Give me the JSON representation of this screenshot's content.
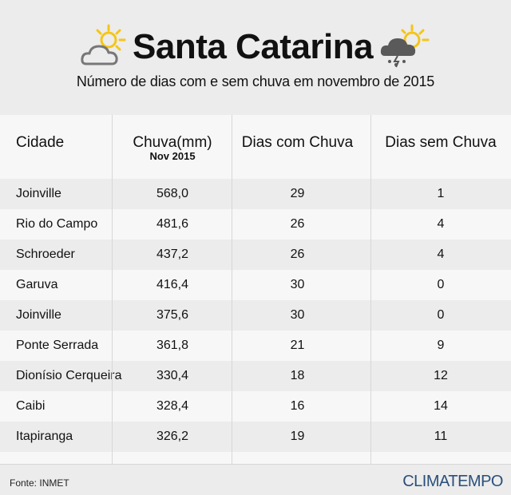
{
  "header": {
    "title": "Santa Catarina",
    "subtitle": "Número de dias com e sem chuva em novembro de 2015",
    "icons": [
      "partly-cloudy-icon",
      "storm-cloud-icon"
    ]
  },
  "chart_data": {
    "type": "table",
    "columns": [
      {
        "label": "Cidade",
        "sub": ""
      },
      {
        "label": "Chuva(mm)",
        "sub": "Nov 2015"
      },
      {
        "label": "Dias com Chuva",
        "sub": ""
      },
      {
        "label": "Dias sem Chuva",
        "sub": ""
      }
    ],
    "rows": [
      {
        "city": "Joinville",
        "rain_mm": "568,0",
        "rain_days": "29",
        "dry_days": "1"
      },
      {
        "city": "Rio do Campo",
        "rain_mm": "481,6",
        "rain_days": "26",
        "dry_days": "4"
      },
      {
        "city": "Schroeder",
        "rain_mm": "437,2",
        "rain_days": "26",
        "dry_days": "4"
      },
      {
        "city": "Garuva",
        "rain_mm": "416,4",
        "rain_days": "30",
        "dry_days": "0"
      },
      {
        "city": "Joinville",
        "rain_mm": "375,6",
        "rain_days": "30",
        "dry_days": "0"
      },
      {
        "city": "Ponte Serrada",
        "rain_mm": "361,8",
        "rain_days": "21",
        "dry_days": "9"
      },
      {
        "city": "Dionísio Cerqueira",
        "rain_mm": "330,4",
        "rain_days": "18",
        "dry_days": "12"
      },
      {
        "city": "Caibi",
        "rain_mm": "328,4",
        "rain_days": "16",
        "dry_days": "14"
      },
      {
        "city": "Itapiranga",
        "rain_mm": "326,2",
        "rain_days": "19",
        "dry_days": "11"
      }
    ]
  },
  "footer": {
    "source": "Fonte: INMET",
    "brand": "CLIMATEMPO"
  },
  "colors": {
    "background": "#ececec",
    "row_light": "#f7f7f7",
    "sun": "#f5c518",
    "brand": "#2a4f7a"
  }
}
